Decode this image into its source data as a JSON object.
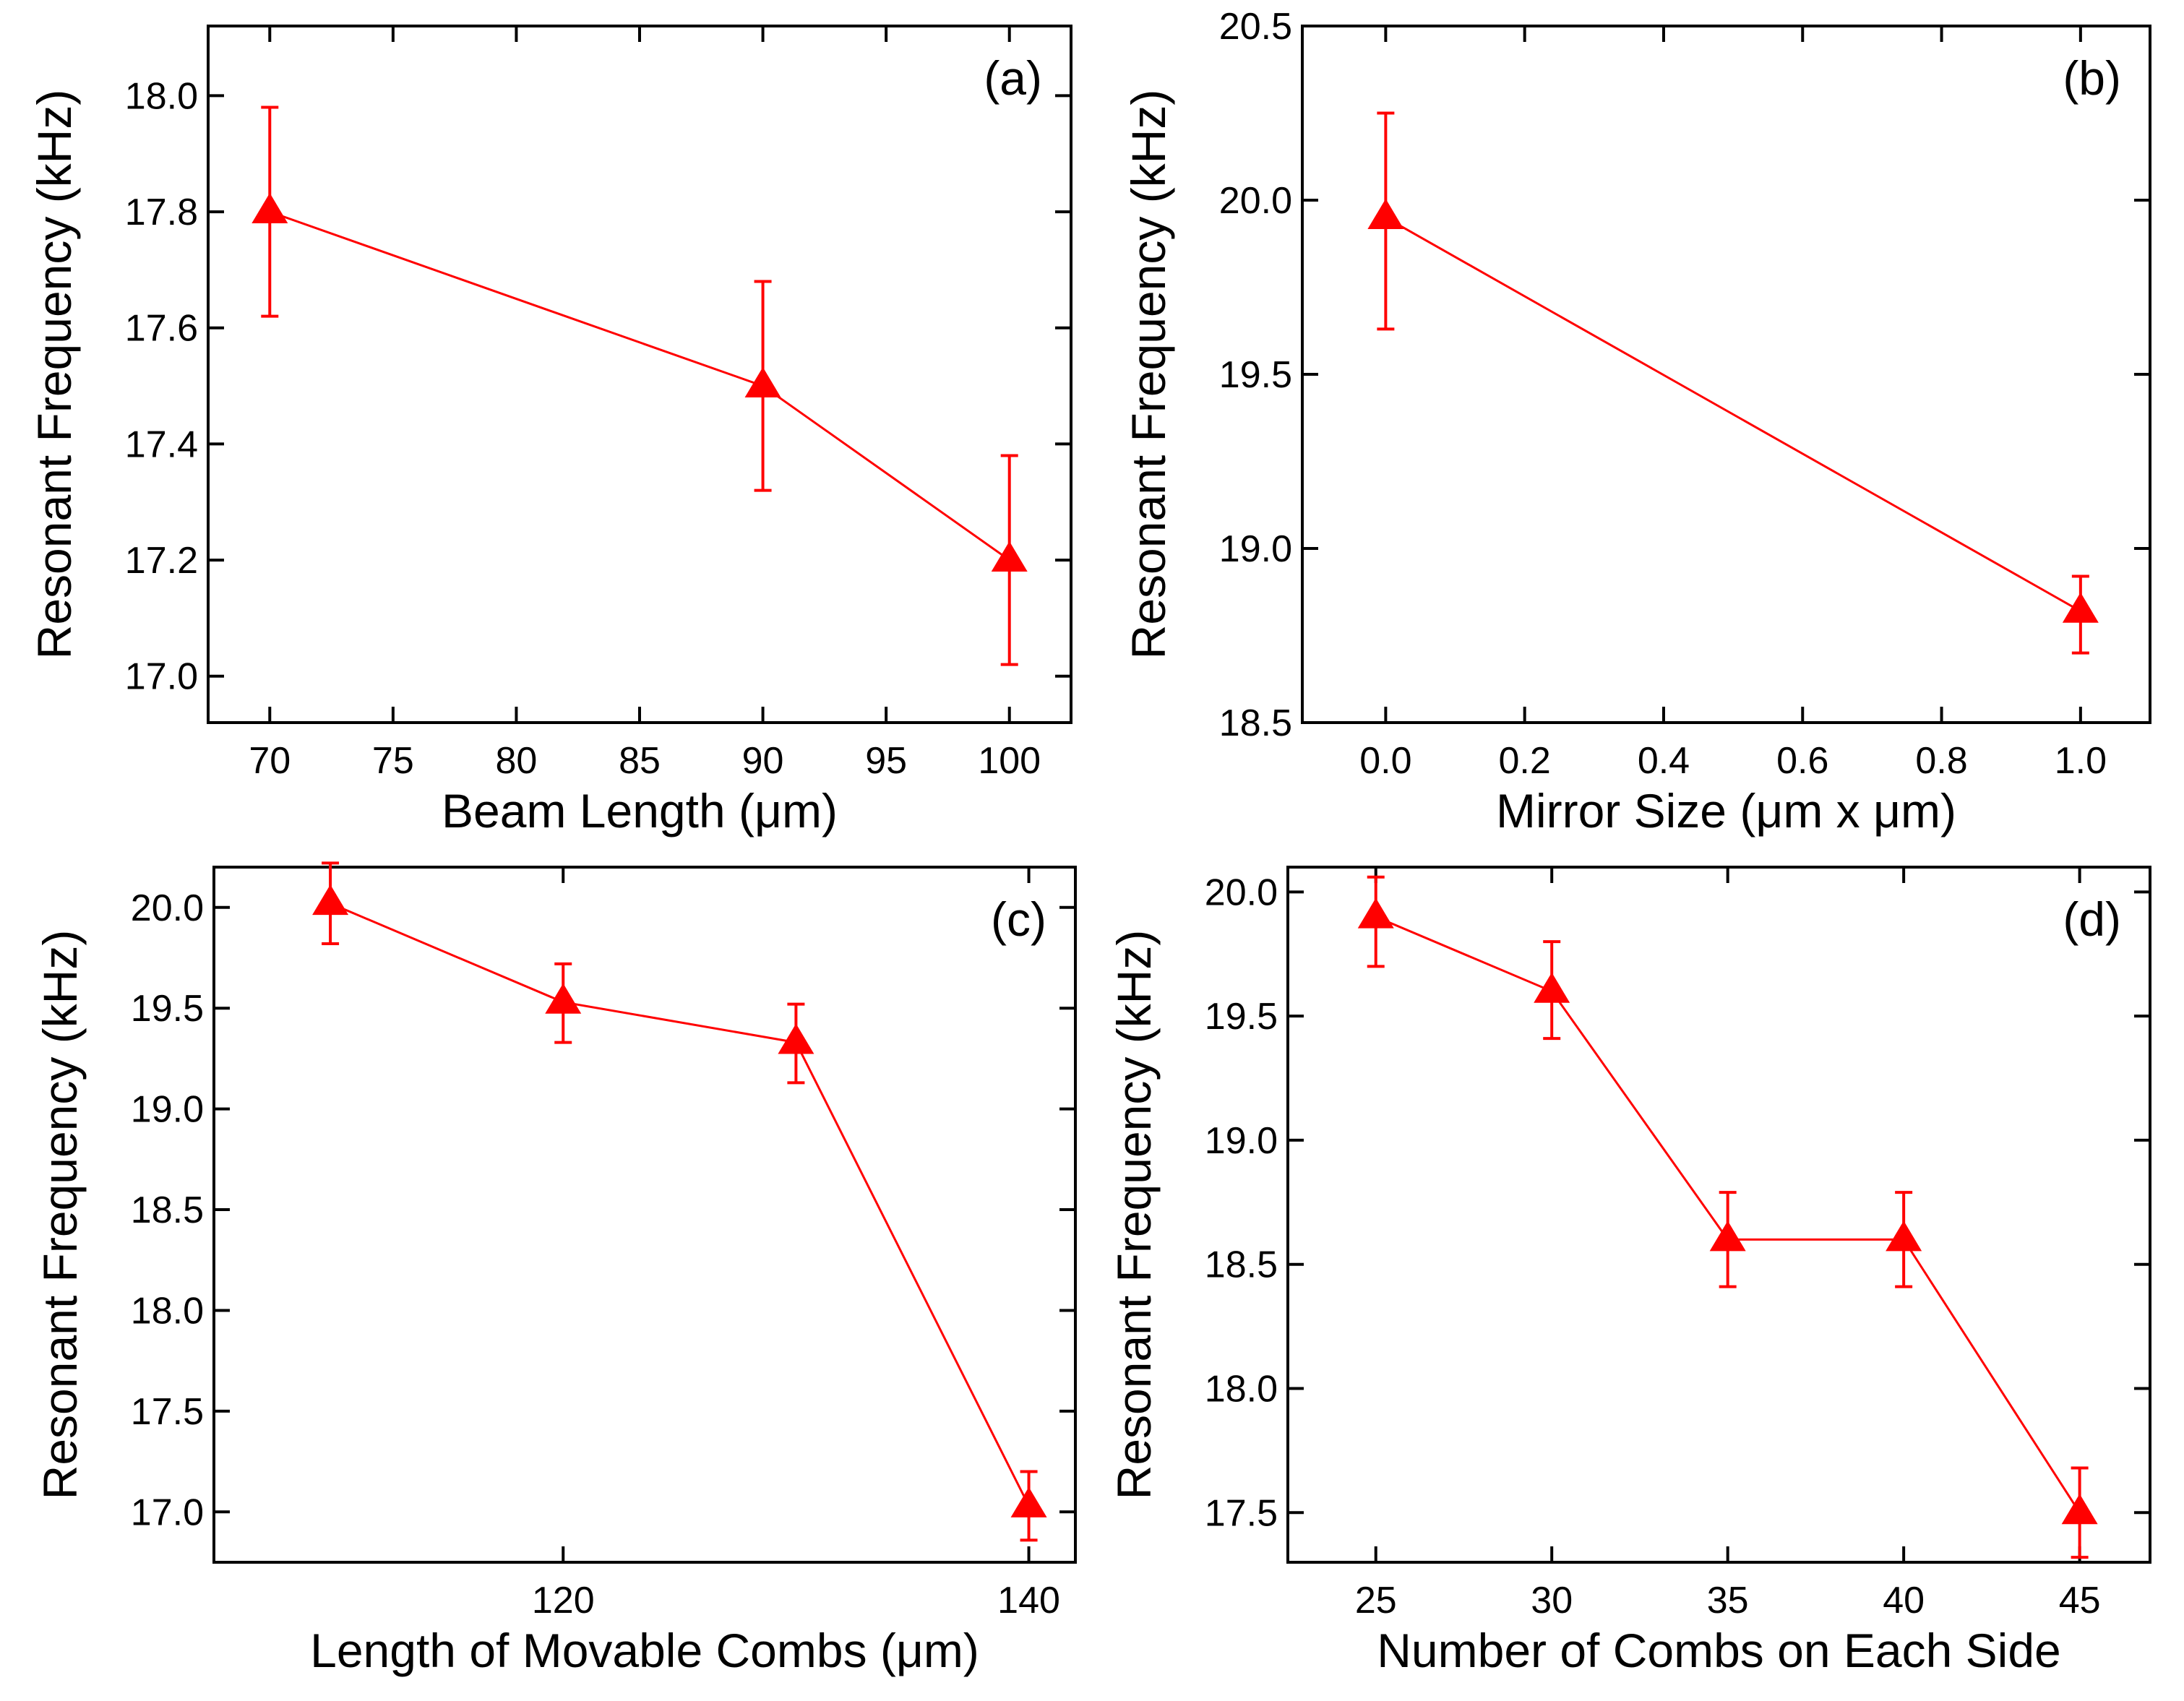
{
  "figure": {
    "background": "#ffffff"
  },
  "chart_data": [
    {
      "id": "a",
      "type": "line",
      "panel_label": "(a)",
      "xlabel": "Beam Length (μm)",
      "ylabel": "Resonant Frequency (kHz)",
      "xlim": [
        67.5,
        102.5
      ],
      "ylim": [
        16.92,
        18.12
      ],
      "xticks": [
        70,
        75,
        80,
        85,
        90,
        95,
        100
      ],
      "xtick_labels": [
        "70",
        "75",
        "80",
        "85",
        "90",
        "95",
        "100"
      ],
      "yticks": [
        17.0,
        17.2,
        17.4,
        17.6,
        17.8,
        18.0
      ],
      "ytick_labels": [
        "17.0",
        "17.2",
        "17.4",
        "17.6",
        "17.8",
        "18.0"
      ],
      "series": [
        {
          "name": "Resonant Frequency",
          "color": "#ff0000",
          "marker": "triangle",
          "x": [
            70,
            90,
            100
          ],
          "y": [
            17.8,
            17.5,
            17.2
          ],
          "yerr_low": [
            17.62,
            17.32,
            17.02
          ],
          "yerr_high": [
            17.98,
            17.68,
            17.38
          ]
        }
      ]
    },
    {
      "id": "b",
      "type": "line",
      "panel_label": "(b)",
      "xlabel": "Mirror Size (μm x μm)",
      "ylabel": "Resonant Frequency (kHz)",
      "xlim": [
        -0.12,
        1.1
      ],
      "ylim": [
        18.5,
        20.5
      ],
      "xticks": [
        0.0,
        0.2,
        0.4,
        0.6,
        0.8,
        1.0
      ],
      "xtick_labels": [
        "0.0",
        "0.2",
        "0.4",
        "0.6",
        "0.8",
        "1.0"
      ],
      "yticks": [
        18.5,
        19.0,
        19.5,
        20.0,
        20.5
      ],
      "ytick_labels": [
        "18.5",
        "19.0",
        "19.5",
        "20.0",
        "20.5"
      ],
      "series": [
        {
          "name": "Resonant Frequency",
          "color": "#ff0000",
          "marker": "triangle",
          "x": [
            0.0,
            1.0
          ],
          "y": [
            19.95,
            18.82
          ],
          "yerr_low": [
            19.63,
            18.7
          ],
          "yerr_high": [
            20.25,
            18.92
          ]
        }
      ]
    },
    {
      "id": "c",
      "type": "line",
      "panel_label": "(c)",
      "xlabel": "Length of Movable Combs (μm)",
      "ylabel": "Resonant Frequency (kHz)",
      "xlim": [
        105,
        142
      ],
      "ylim": [
        16.75,
        20.2
      ],
      "xticks": [
        120,
        140
      ],
      "xtick_labels": [
        "120",
        "140"
      ],
      "yticks": [
        17.0,
        17.5,
        18.0,
        18.5,
        19.0,
        19.5,
        20.0
      ],
      "ytick_labels": [
        "17.0",
        "17.5",
        "18.0",
        "18.5",
        "19.0",
        "19.5",
        "20.0"
      ],
      "series": [
        {
          "name": "Resonant Frequency",
          "color": "#ff0000",
          "marker": "triangle",
          "x": [
            110,
            120,
            130,
            140
          ],
          "y": [
            20.02,
            19.53,
            19.33,
            17.03
          ],
          "yerr_low": [
            19.82,
            19.33,
            19.13,
            16.86
          ],
          "yerr_high": [
            20.22,
            19.72,
            19.52,
            17.2
          ]
        }
      ]
    },
    {
      "id": "d",
      "type": "line",
      "panel_label": "(d)",
      "xlabel": "Number of Combs on Each Side",
      "ylabel": "Resonant Frequency (kHz)",
      "xlim": [
        22.5,
        47.0
      ],
      "ylim": [
        17.3,
        20.1
      ],
      "xticks": [
        25,
        30,
        35,
        40,
        45
      ],
      "xtick_labels": [
        "25",
        "30",
        "35",
        "40",
        "45"
      ],
      "yticks": [
        17.5,
        18.0,
        18.5,
        19.0,
        19.5,
        20.0
      ],
      "ytick_labels": [
        "17.5",
        "18.0",
        "18.5",
        "19.0",
        "19.5",
        "20.0"
      ],
      "series": [
        {
          "name": "Resonant Frequency",
          "color": "#ff0000",
          "marker": "triangle",
          "x": [
            25,
            30,
            35,
            40,
            45
          ],
          "y": [
            19.9,
            19.6,
            18.6,
            18.6,
            17.5
          ],
          "yerr_low": [
            19.7,
            19.41,
            18.41,
            18.41,
            17.32
          ],
          "yerr_high": [
            20.06,
            19.8,
            18.79,
            18.79,
            17.68
          ]
        }
      ]
    }
  ]
}
